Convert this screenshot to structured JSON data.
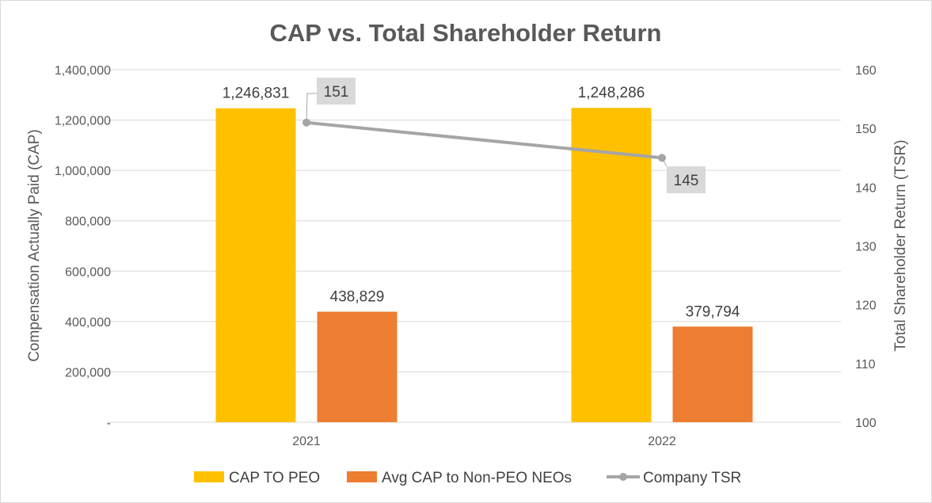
{
  "chart_data": {
    "type": "bar+line",
    "title": "CAP vs. Total Shareholder Return",
    "categories": [
      "2021",
      "2022"
    ],
    "y_left": {
      "label": "Compensation Actually Paid (CAP)",
      "range": [
        0,
        1400000
      ],
      "ticks": [
        "-",
        "200,000",
        "400,000",
        "600,000",
        "800,000",
        "1,000,000",
        "1,200,000",
        "1,400,000"
      ],
      "tick_values": [
        0,
        200000,
        400000,
        600000,
        800000,
        1000000,
        1200000,
        1400000
      ]
    },
    "y_right": {
      "label": "Total Shareholder Return (TSR)",
      "range": [
        100,
        160
      ],
      "ticks": [
        "100",
        "110",
        "120",
        "130",
        "140",
        "150",
        "160"
      ],
      "tick_values": [
        100,
        110,
        120,
        130,
        140,
        150,
        160
      ]
    },
    "series": [
      {
        "name": "CAP TO PEO",
        "type": "bar",
        "axis": "left",
        "color": "#FFC000",
        "values": [
          1246831,
          1248286
        ],
        "labels": [
          "1,246,831",
          "1,248,286"
        ]
      },
      {
        "name": "Avg CAP to Non-PEO NEOs",
        "type": "bar",
        "axis": "left",
        "color": "#ED7D31",
        "values": [
          438829,
          379794
        ],
        "labels": [
          "438,829",
          "379,794"
        ]
      },
      {
        "name": "Company TSR",
        "type": "line",
        "axis": "right",
        "color": "#A5A5A5",
        "values": [
          151,
          145
        ],
        "labels": [
          "151",
          "145"
        ]
      }
    ],
    "gridlines": true,
    "legend_position": "bottom"
  }
}
